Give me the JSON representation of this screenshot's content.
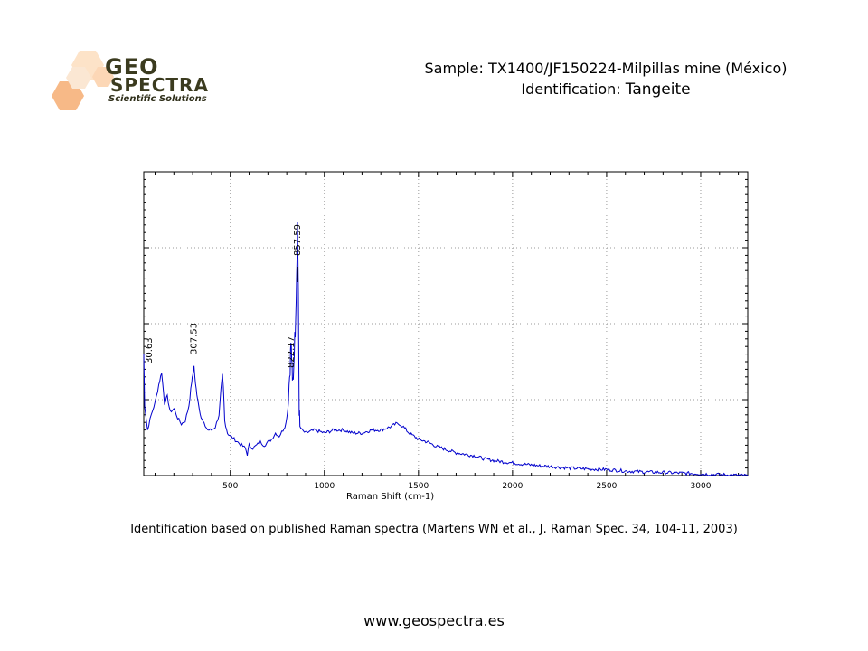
{
  "logo": {
    "line1": "GEO",
    "line2": "SPECTRA",
    "line3": "Scientific Solutions",
    "color_dark": "#3b3b1f",
    "color_orange": "#f4a261"
  },
  "header": {
    "sample_label": "Sample: TX1400/JF150224-Milpillas mine (México)",
    "identification_prefix": "Identification: ",
    "identification_mineral": "Tangeite"
  },
  "chart_data": {
    "type": "line",
    "title": "",
    "xlabel": "Raman Shift (cm-1)",
    "ylabel": "",
    "xlim": [
      40,
      3250
    ],
    "ylim": [
      0,
      100
    ],
    "x_ticks": [
      500,
      1000,
      1500,
      2000,
      2500,
      3000
    ],
    "grid": true,
    "line_color": "#0000cc",
    "peak_labels": [
      {
        "x": 30.63,
        "text": "30.63"
      },
      {
        "x": 307.53,
        "text": "307.53"
      },
      {
        "x": 822.17,
        "text": "822.17"
      },
      {
        "x": 857.59,
        "text": "857.59"
      }
    ],
    "series": [
      {
        "x": [
          40,
          45,
          60,
          80,
          100,
          120,
          135,
          150,
          165,
          180,
          200,
          220,
          240,
          260,
          280,
          295,
          300,
          307,
          315,
          322,
          330,
          345,
          360,
          380,
          400,
          420,
          440,
          450,
          458,
          463,
          470,
          485,
          500,
          520,
          540,
          560,
          580,
          590,
          600,
          620,
          640,
          660,
          680,
          700,
          720,
          740,
          760,
          780,
          795,
          805,
          812,
          818,
          822,
          826,
          830,
          835,
          840,
          845,
          850,
          855,
          857,
          860,
          863,
          866,
          870,
          880,
          900,
          950,
          1000,
          1050,
          1100,
          1150,
          1200,
          1250,
          1300,
          1350,
          1380,
          1400,
          1420,
          1450,
          1500,
          1550,
          1600,
          1650,
          1700,
          1750,
          1800,
          1850,
          1900,
          1950,
          2000,
          2050,
          2100,
          2150,
          2200,
          2300,
          2400,
          2500,
          2600,
          2700,
          2800,
          2900,
          3000,
          3100,
          3200,
          3250
        ],
        "y": [
          40,
          23,
          15,
          20,
          24,
          30,
          34,
          24,
          26,
          21,
          22,
          19,
          17,
          18,
          23,
          31,
          33,
          36,
          30,
          27,
          24,
          19,
          17,
          15,
          15,
          16,
          20,
          28,
          33,
          29,
          18,
          14,
          13,
          12,
          11,
          10,
          9,
          7,
          10,
          9,
          10,
          11,
          10,
          11,
          12,
          14,
          13,
          15,
          17,
          22,
          30,
          36,
          44,
          39,
          30,
          33,
          42,
          48,
          60,
          75,
          84,
          70,
          45,
          22,
          16,
          15,
          14,
          15,
          14,
          15,
          15,
          14,
          14,
          15,
          15,
          16,
          17,
          17,
          16,
          14,
          12,
          11,
          9.5,
          8.5,
          7.5,
          7,
          6.5,
          5.5,
          5,
          4.5,
          4.2,
          3.8,
          3.5,
          3.2,
          3,
          2.5,
          2.2,
          2,
          1.5,
          1.2,
          1,
          0.8,
          0.6,
          0.3,
          0.1,
          0
        ]
      }
    ]
  },
  "reference": {
    "text": "Identification based on published Raman spectra (Martens WN et al., J. Raman Spec. 34, 104-11, 2003)"
  },
  "footer": {
    "website": "www.geospectra.es"
  }
}
